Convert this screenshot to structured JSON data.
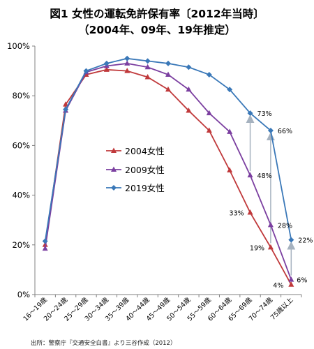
{
  "title_line1": "図1 女性の運転免許保有率〔2012年当時〕",
  "title_line2": "（2004年、09年、19年推定）",
  "source": "出所：警察庁『交通安全白書』より三谷作成（2012）",
  "colors": {
    "s2004": "#c0393b",
    "s2009": "#7b3fa0",
    "s2019": "#3a78b8",
    "arrow": "#a6b2bf",
    "axis": "#808080"
  },
  "chart_data": {
    "type": "line",
    "title": "図1 女性の運転免許保有率〔2012年当時〕",
    "subtitle": "（2004年、09年、19年推定）",
    "xlabel": "",
    "ylabel": "",
    "ylim": [
      0,
      100
    ],
    "yticks": [
      0,
      20,
      40,
      60,
      80,
      100
    ],
    "ytick_labels": [
      "0%",
      "20%",
      "40%",
      "60%",
      "80%",
      "100%"
    ],
    "grid": false,
    "legend_position": "center-left",
    "categories": [
      "16～19歳",
      "20～24歳",
      "25～29歳",
      "30～34歳",
      "35～39歳",
      "40～44歳",
      "45～49歳",
      "50～54歳",
      "55～59歳",
      "60～64歳",
      "65～69歳",
      "70～74歳",
      "75歳以上"
    ],
    "series": [
      {
        "name": "2004女性",
        "color": "#c0393b",
        "marker": "triangle",
        "values": [
          20,
          76.5,
          88.5,
          90.5,
          90,
          87.5,
          82.5,
          74,
          66,
          50,
          33,
          19,
          4
        ]
      },
      {
        "name": "2009女性",
        "color": "#7b3fa0",
        "marker": "triangle",
        "values": [
          18.5,
          74,
          89.5,
          92,
          93,
          91.5,
          88.5,
          82.5,
          73,
          65.5,
          48,
          28,
          6
        ]
      },
      {
        "name": "2019女性",
        "color": "#3a78b8",
        "marker": "diamond",
        "values": [
          21.5,
          74.5,
          90,
          93,
          95,
          94,
          93,
          91.5,
          88.5,
          82.5,
          73,
          66,
          22
        ]
      }
    ],
    "annotations": [
      {
        "text": "73%",
        "category": 10,
        "value": 73
      },
      {
        "text": "66%",
        "category": 11,
        "value": 66
      },
      {
        "text": "48%",
        "category": 10,
        "value": 48
      },
      {
        "text": "33%",
        "category": 10,
        "value": 33
      },
      {
        "text": "28%",
        "category": 11,
        "value": 28
      },
      {
        "text": "22%",
        "category": 12,
        "value": 22
      },
      {
        "text": "19%",
        "category": 11,
        "value": 19
      },
      {
        "text": "6%",
        "category": 12,
        "value": 6
      },
      {
        "text": "4%",
        "category": 12,
        "value": 4
      }
    ],
    "arrows": [
      {
        "category": 10,
        "from": 48,
        "to": 73
      },
      {
        "category": 11,
        "from": 19,
        "to": 66
      },
      {
        "category": 12,
        "from": 6,
        "to": 22
      }
    ]
  }
}
